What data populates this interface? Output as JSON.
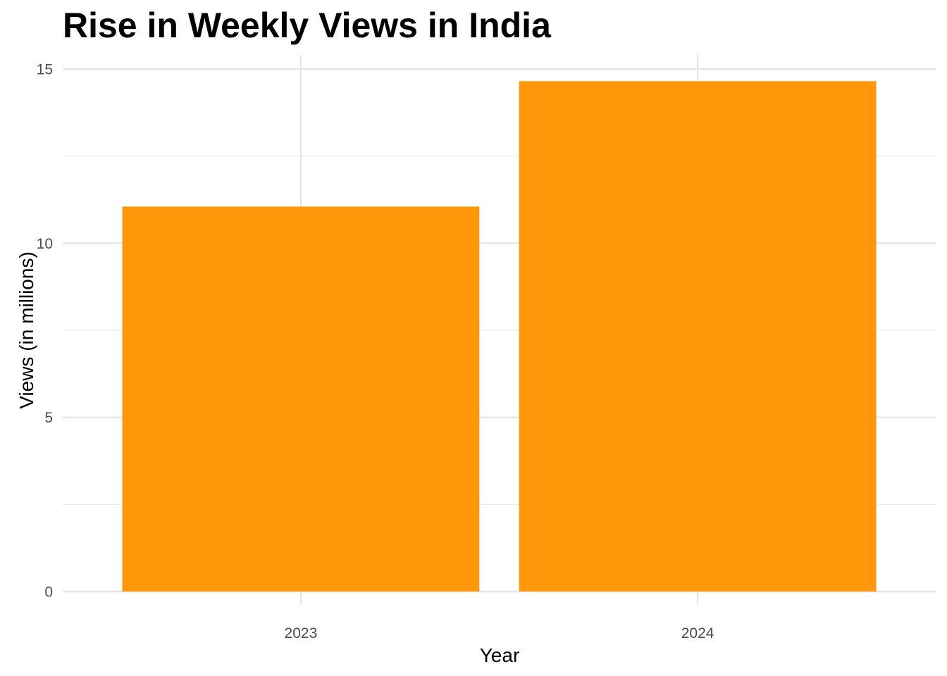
{
  "chart_data": {
    "type": "bar",
    "title": "Rise in Weekly Views in India",
    "xlabel": "Year",
    "ylabel": "Views (in millions)",
    "categories": [
      "2023",
      "2024"
    ],
    "values": [
      11.05,
      14.65
    ],
    "ylim": [
      0,
      15
    ],
    "yticks": [
      0,
      5,
      10,
      15
    ],
    "grid": true,
    "legend": "none",
    "bar_color": "#FE9709",
    "grid_color": "#E6E6E6"
  }
}
